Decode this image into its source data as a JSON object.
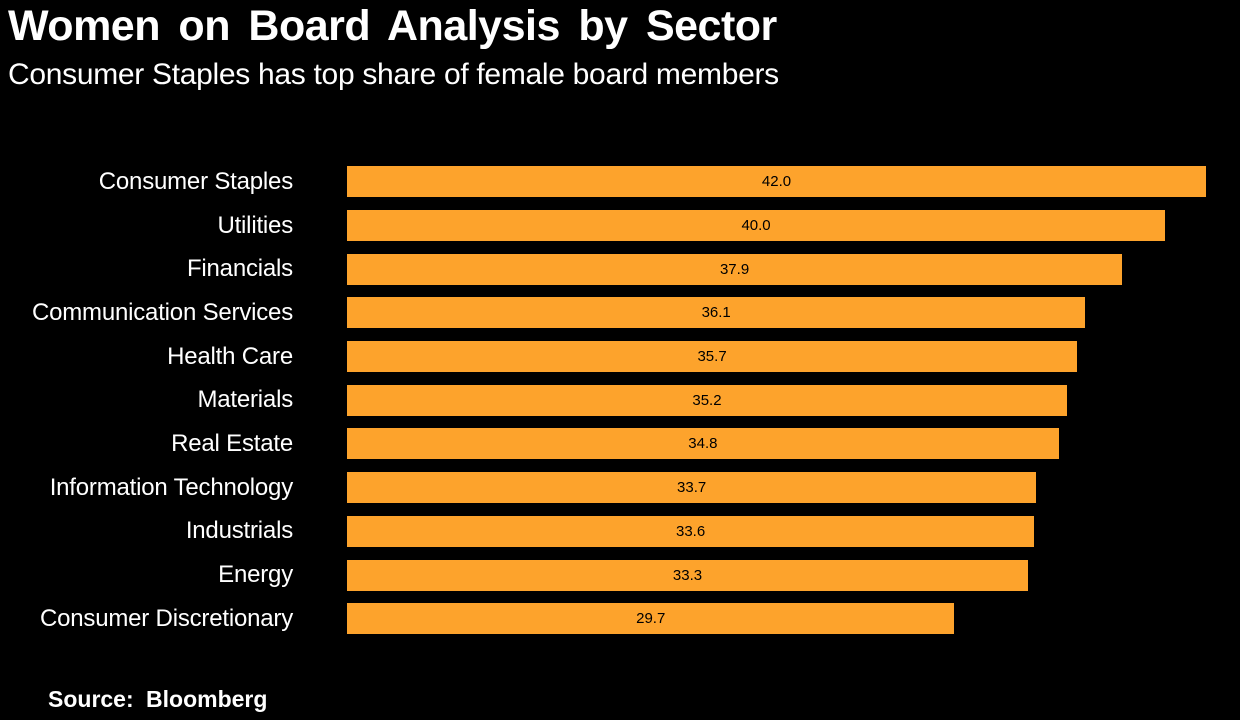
{
  "header": {
    "title": "Women on Board Analysis by Sector",
    "subtitle": "Consumer Staples has top share of female board members"
  },
  "footer": {
    "source_text": "Source: Bloomberg"
  },
  "chart_data": {
    "type": "bar",
    "orientation": "horizontal",
    "title": "Women on Board Analysis by Sector",
    "subtitle": "Consumer Staples has top share of female board members",
    "source": "Bloomberg",
    "categories": [
      "Consumer Staples",
      "Utilities",
      "Financials",
      "Communication Services",
      "Health Care",
      "Materials",
      "Real Estate",
      "Information Technology",
      "Industrials",
      "Energy",
      "Consumer Discretionary"
    ],
    "values": [
      42.0,
      40.0,
      37.9,
      36.1,
      35.7,
      35.2,
      34.8,
      33.7,
      33.6,
      33.3,
      29.7
    ],
    "value_labels": [
      "42.0",
      "40.0",
      "37.9",
      "36.1",
      "35.7",
      "35.2",
      "34.8",
      "33.7",
      "33.6",
      "33.3",
      "29.7"
    ],
    "xlim": [
      0,
      42
    ],
    "grid": false,
    "legend": "none",
    "bar_color": "#FDA32C",
    "value_label_color": "#000000",
    "category_label_color": "#FFFFFF",
    "background_color": "#000000"
  }
}
